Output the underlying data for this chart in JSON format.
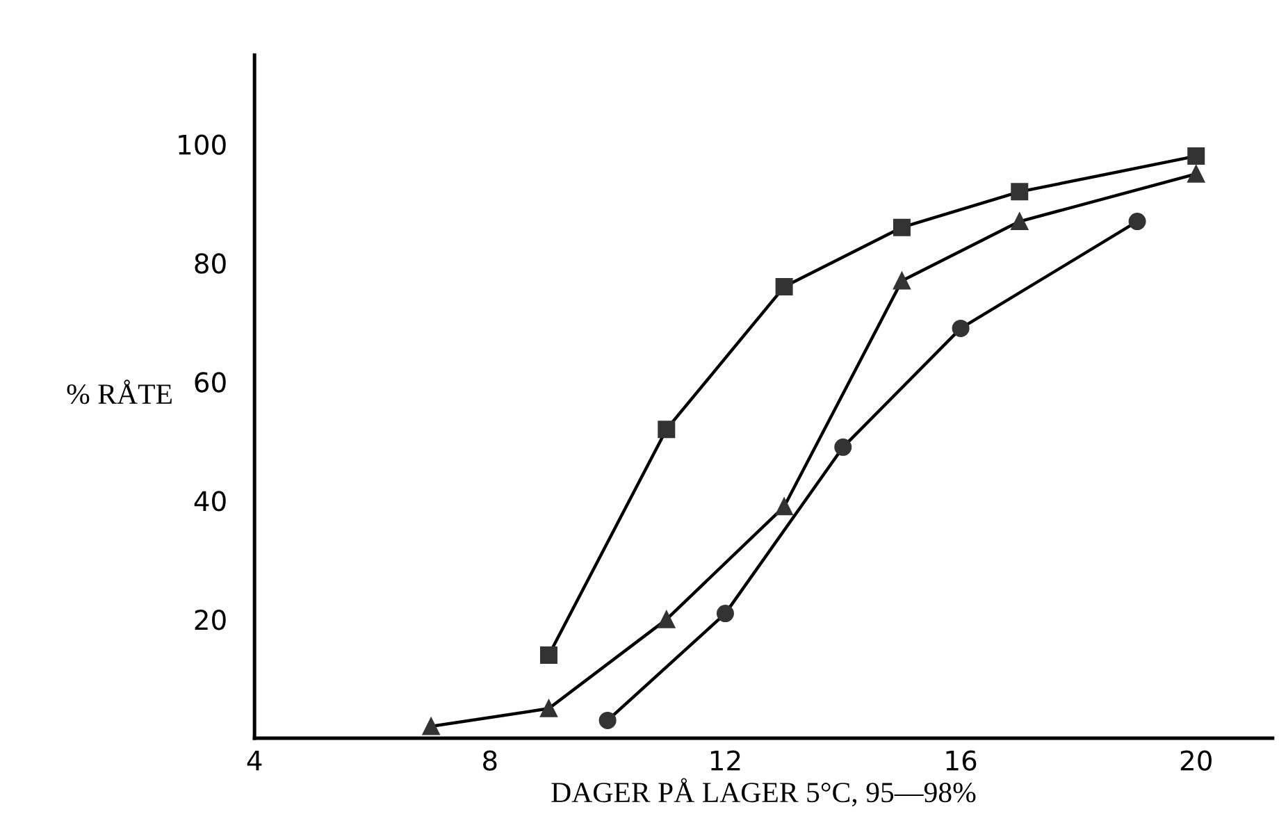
{
  "chart_data": {
    "type": "line",
    "xlabel": "DAGER PÅ LAGER 5°C, 95—98%",
    "ylabel": "% RÅTE",
    "xlim": [
      4,
      21.3
    ],
    "ylim": [
      0,
      115
    ],
    "xticks": [
      4,
      8,
      12,
      16,
      20
    ],
    "yticks": [
      20,
      40,
      60,
      80,
      100
    ],
    "grid": false,
    "legend": false,
    "series": [
      {
        "color": "#333333",
        "marker": "square",
        "x": [
          9,
          11,
          13,
          15,
          17,
          20
        ],
        "values": [
          14,
          52,
          76,
          86,
          92,
          98
        ]
      },
      {
        "color": "#333333",
        "marker": "triangle",
        "x": [
          7,
          9,
          11,
          13,
          15,
          17,
          20
        ],
        "values": [
          2,
          5,
          20,
          39,
          77,
          87,
          95
        ]
      },
      {
        "color": "#333333",
        "marker": "circle",
        "x": [
          10,
          12,
          14,
          16,
          19
        ],
        "values": [
          3,
          21,
          49,
          69,
          87
        ]
      }
    ]
  }
}
